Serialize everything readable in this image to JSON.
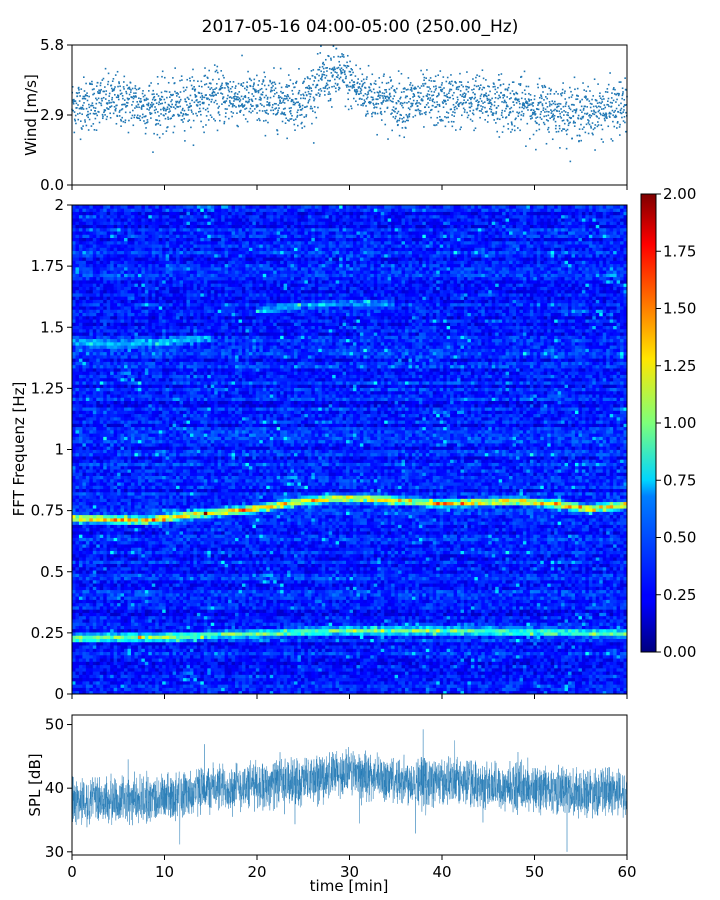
{
  "figure": {
    "title": "2017-05-16 04:00-05:00 (250.00_Hz)"
  },
  "chart_data": [
    {
      "type": "scatter",
      "name": "wind",
      "ylabel": "Wind [m/s]",
      "xlim": [
        0,
        60
      ],
      "ylim": [
        0,
        5.8
      ],
      "yticks": [
        0.0,
        2.9,
        5.8
      ],
      "ytick_labels": [
        "0.0",
        "2.9",
        "5.8"
      ],
      "marker_color": "#1f77b4",
      "sample_count": 2400,
      "mean_profile": {
        "x": [
          0,
          5,
          10,
          15,
          20,
          25,
          27,
          29,
          31,
          35,
          40,
          45,
          50,
          55,
          60
        ],
        "y": [
          3.3,
          3.5,
          3.2,
          3.7,
          3.5,
          3.5,
          4.3,
          4.6,
          3.9,
          3.4,
          3.5,
          3.5,
          3.2,
          3.0,
          3.2
        ]
      },
      "spread": 0.55
    },
    {
      "type": "heatmap",
      "name": "spectrogram",
      "ylabel": "FFT Frequenz [Hz]",
      "xlim": [
        0,
        60
      ],
      "ylim": [
        0,
        2
      ],
      "yticks": [
        0,
        0.25,
        0.5,
        0.75,
        1,
        1.25,
        1.5,
        1.75,
        2
      ],
      "ytick_labels": [
        "0",
        "0.25",
        "0.5",
        "0.75",
        "1",
        "1.25",
        "1.5",
        "1.75",
        "2"
      ],
      "colormap": "jet",
      "clim": [
        0,
        2
      ],
      "colorbar_ticks": [
        "0.00",
        "0.25",
        "0.50",
        "0.75",
        "1.00",
        "1.25",
        "1.50",
        "1.75",
        "2.00"
      ],
      "colorbar_values": [
        0,
        0.25,
        0.5,
        0.75,
        1.0,
        1.25,
        1.5,
        1.75,
        2.0
      ],
      "bands": [
        {
          "x": [
            0,
            5,
            8,
            12,
            16,
            20,
            24,
            28,
            32,
            36,
            40,
            44,
            48,
            52,
            56,
            60
          ],
          "freq": [
            0.72,
            0.715,
            0.71,
            0.73,
            0.745,
            0.76,
            0.785,
            0.8,
            0.8,
            0.79,
            0.78,
            0.785,
            0.79,
            0.78,
            0.76,
            0.775
          ],
          "intensity": 1.1
        },
        {
          "x": [
            0,
            10,
            20,
            30,
            40,
            50,
            60
          ],
          "freq": [
            0.23,
            0.235,
            0.25,
            0.26,
            0.26,
            0.255,
            0.25
          ],
          "intensity": 0.75
        },
        {
          "x": [
            0,
            5,
            10,
            15
          ],
          "freq": [
            1.44,
            1.43,
            1.44,
            1.46
          ],
          "intensity": 0.35
        },
        {
          "x": [
            20,
            25,
            30,
            35
          ],
          "freq": [
            1.57,
            1.59,
            1.6,
            1.6
          ],
          "intensity": 0.3
        }
      ],
      "time_bins": 160,
      "freq_bins": 150
    },
    {
      "type": "line",
      "name": "spl",
      "ylabel": "SPL [dB]",
      "xlabel": "time [min]",
      "xlim": [
        0,
        60
      ],
      "ylim": [
        29.5,
        51.5
      ],
      "yticks": [
        30,
        40,
        50
      ],
      "ytick_labels": [
        "30",
        "40",
        "50"
      ],
      "xticks": [
        0,
        10,
        20,
        30,
        40,
        50,
        60
      ],
      "xtick_labels": [
        "0",
        "10",
        "20",
        "30",
        "40",
        "50",
        "60"
      ],
      "line_color": "#1f77b4",
      "sample_count": 3600,
      "mean_profile": {
        "x": [
          0,
          5,
          10,
          15,
          20,
          25,
          28,
          30,
          33,
          40,
          45,
          50,
          55,
          60
        ],
        "y": [
          38,
          38,
          38.5,
          40,
          40.5,
          41,
          42,
          42.5,
          41.5,
          41,
          40.5,
          40,
          39.5,
          39.5
        ]
      },
      "spread": 4.5
    }
  ]
}
